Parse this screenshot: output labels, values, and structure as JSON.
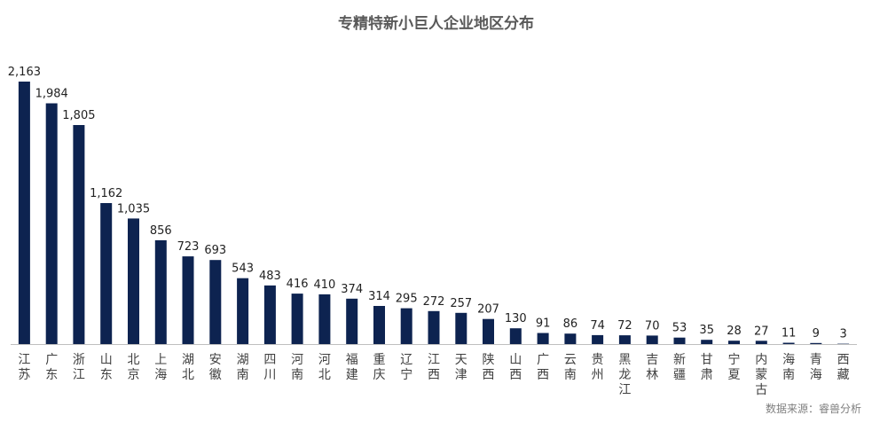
{
  "colors": {
    "bar": "#0d2350",
    "axis": "#bfbfbf"
  },
  "chart_data": {
    "type": "bar",
    "title": "专精特新小巨人企业地区分布",
    "source": "数据来源：睿兽分析",
    "categories": [
      "江苏",
      "广东",
      "浙江",
      "山东",
      "北京",
      "上海",
      "湖北",
      "安徽",
      "湖南",
      "四川",
      "河南",
      "河北",
      "福建",
      "重庆",
      "辽宁",
      "江西",
      "天津",
      "陕西",
      "山西",
      "广西",
      "云南",
      "贵州",
      "黑龙江",
      "吉林",
      "新疆",
      "甘肃",
      "宁夏",
      "内蒙古",
      "海南",
      "青海",
      "西藏"
    ],
    "values": [
      2163,
      1984,
      1805,
      1162,
      1035,
      856,
      723,
      693,
      543,
      483,
      416,
      410,
      374,
      314,
      295,
      272,
      257,
      207,
      130,
      91,
      86,
      74,
      72,
      70,
      53,
      35,
      28,
      27,
      11,
      9,
      3
    ],
    "value_labels": [
      "2,163",
      "1,984",
      "1,805",
      "1,162",
      "1,035",
      "856",
      "723",
      "693",
      "543",
      "483",
      "416",
      "410",
      "374",
      "314",
      "295",
      "272",
      "257",
      "207",
      "130",
      "91",
      "86",
      "74",
      "72",
      "70",
      "53",
      "35",
      "28",
      "27",
      "11",
      "9",
      "3"
    ],
    "ylim": [
      0,
      2163
    ],
    "grid": false,
    "legend": "none"
  }
}
